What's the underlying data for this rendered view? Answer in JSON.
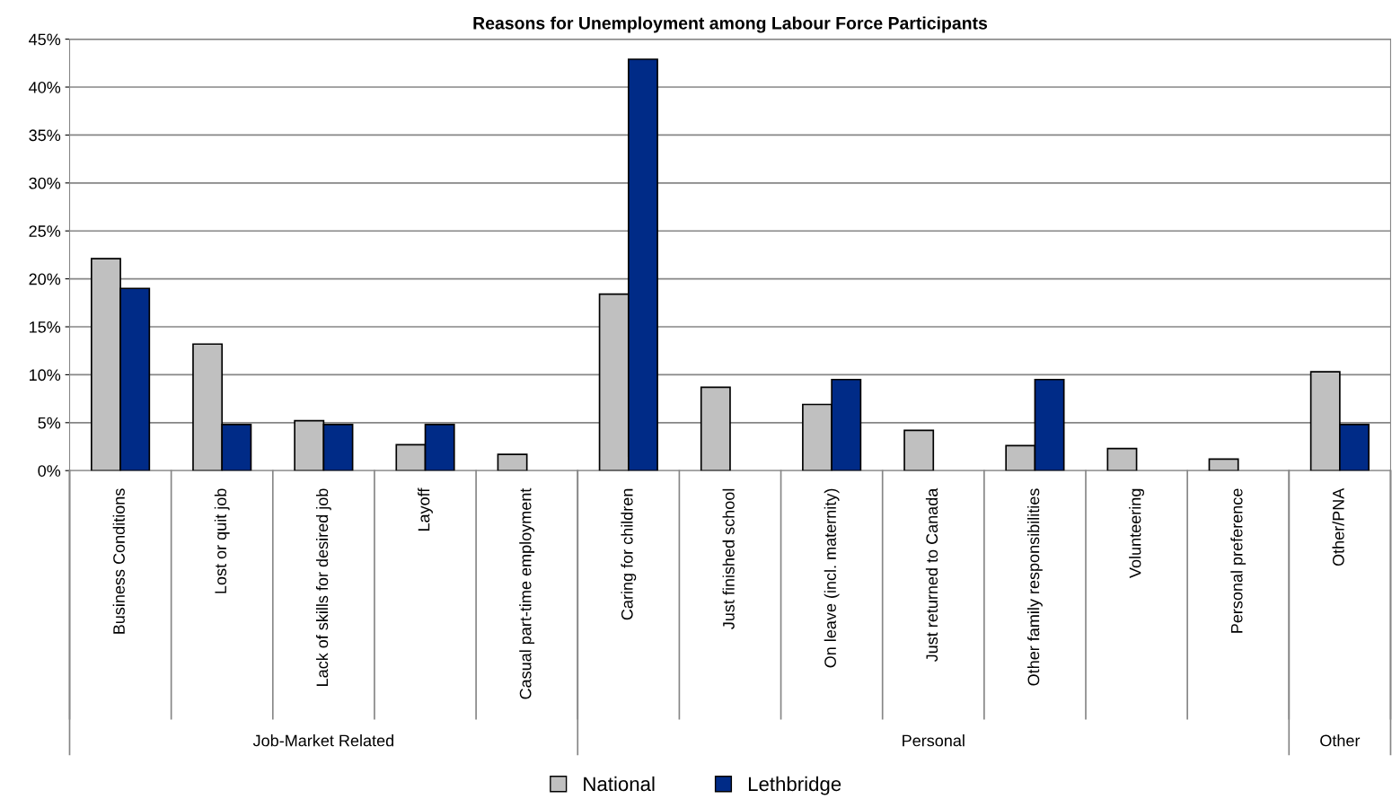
{
  "chart_data": {
    "type": "bar",
    "title": "Reasons for Unemployment among Labour Force Participants",
    "categories": [
      "Business Conditions",
      "Lost or quit job",
      "Lack of skills for desired job",
      "Layoff",
      "Casual part-time employment",
      "Caring for children",
      "Just finished school",
      "On leave (incl. maternity)",
      "Just returned to Canada",
      "Other family responsibilities",
      "Volunteering",
      "Personal preference",
      "Other/PNA"
    ],
    "series": [
      {
        "name": "National",
        "color": "#c0c0c0",
        "values": [
          22.1,
          13.2,
          5.2,
          2.7,
          1.7,
          18.4,
          8.7,
          6.9,
          4.2,
          2.6,
          2.3,
          1.2,
          10.3
        ]
      },
      {
        "name": "Lethbridge",
        "color": "#002b87",
        "values": [
          19.0,
          4.8,
          4.8,
          4.8,
          null,
          42.9,
          null,
          9.5,
          null,
          9.5,
          null,
          null,
          4.8
        ]
      }
    ],
    "ylim": [
      0,
      45
    ],
    "yticks": [
      {
        "value": 0,
        "label": "0%"
      },
      {
        "value": 5,
        "label": "5%"
      },
      {
        "value": 10,
        "label": "10%"
      },
      {
        "value": 15,
        "label": "15%"
      },
      {
        "value": 20,
        "label": "20%"
      },
      {
        "value": 25,
        "label": "25%"
      },
      {
        "value": 30,
        "label": "30%"
      },
      {
        "value": 35,
        "label": "35%"
      },
      {
        "value": 40,
        "label": "40%"
      },
      {
        "value": 45,
        "label": "45%"
      }
    ],
    "annotations": [
      "Job-Market Related",
      "Personal",
      "Other"
    ],
    "grid": "y",
    "legend": "bottom"
  }
}
